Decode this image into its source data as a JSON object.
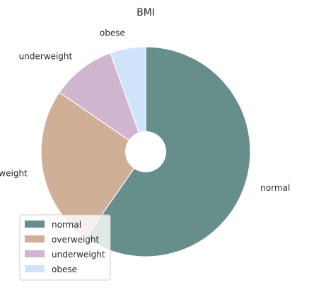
{
  "chart_data": {
    "type": "pie",
    "title": "BMI",
    "categories": [
      "normal",
      "overweight",
      "underweight",
      "obese"
    ],
    "values": [
      60,
      25,
      10,
      5.5
    ],
    "colors": [
      "#668e8a",
      "#cfb096",
      "#d0b5cf",
      "#cfe3fb"
    ],
    "start_angle_deg": 90,
    "direction": "clockwise",
    "hole_fraction": 0.2,
    "legend": {
      "placement": "lower-left",
      "entries": [
        "normal",
        "overweight",
        "underweight",
        "obese"
      ]
    }
  }
}
